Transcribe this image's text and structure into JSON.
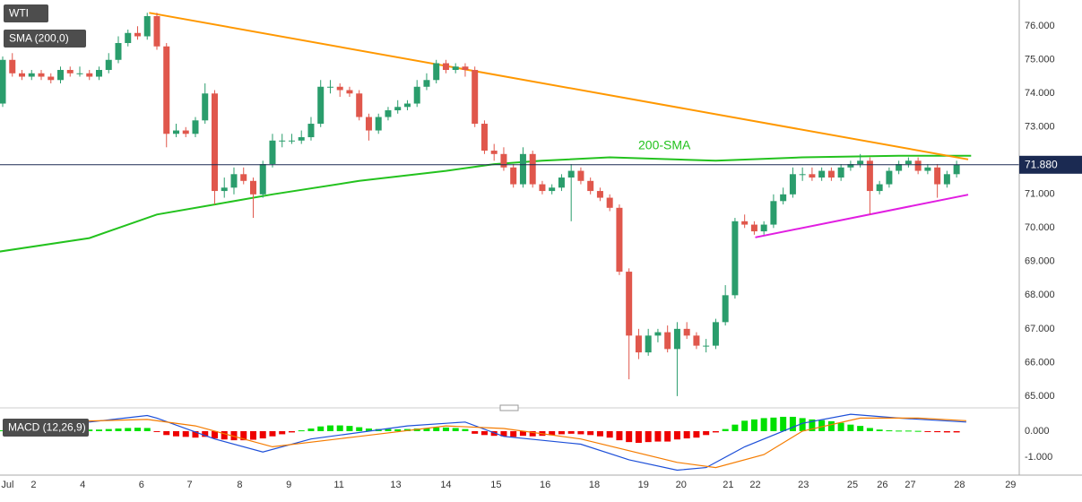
{
  "chart_data": [
    {
      "type": "candlestick",
      "xlim": [
        -0.28,
        105.5
      ],
      "ylim": [
        64.65,
        76.78
      ],
      "yticks": [
        {
          "value": 76,
          "label": "76.000"
        },
        {
          "value": 75,
          "label": "75.000"
        },
        {
          "value": 74,
          "label": "74.000"
        },
        {
          "value": 73,
          "label": "73.000"
        },
        {
          "value": 72,
          "label": "72.000"
        },
        {
          "value": 71,
          "label": "71.000"
        },
        {
          "value": 70,
          "label": "70.000"
        },
        {
          "value": 69,
          "label": "69.000"
        },
        {
          "value": 68,
          "label": "68.000"
        },
        {
          "value": 67,
          "label": "67.000"
        },
        {
          "value": 66,
          "label": "66.000"
        },
        {
          "value": 65,
          "label": "65.000"
        }
      ],
      "grid": true,
      "candles": {
        "name": "WTI",
        "up_color": "#2a9d6c",
        "down_color": "#e0574c",
        "open": [
          73.7,
          75.0,
          74.6,
          74.5,
          74.6,
          74.5,
          74.4,
          74.7,
          74.6,
          74.6,
          74.5,
          74.7,
          75.0,
          75.5,
          75.8,
          75.7,
          76.3,
          75.4,
          72.8,
          72.9,
          72.8,
          73.2,
          74.0,
          71.1,
          71.2,
          71.6,
          71.4,
          71.0,
          71.9,
          72.6,
          72.6,
          72.6,
          72.7,
          73.1,
          74.2,
          74.2,
          74.1,
          74.0,
          73.3,
          72.9,
          73.3,
          73.5,
          73.6,
          73.7,
          74.2,
          74.4,
          74.9,
          74.7,
          74.8,
          74.7,
          73.1,
          72.3,
          72.2,
          71.8,
          71.3,
          72.2,
          71.3,
          71.1,
          71.2,
          71.5,
          71.7,
          71.4,
          71.1,
          70.9,
          70.6,
          68.7,
          66.8,
          66.3,
          66.8,
          66.9,
          66.4,
          67.0,
          66.8,
          66.5,
          66.5,
          67.2,
          68.0,
          70.2,
          70.1,
          69.9,
          70.1,
          70.8,
          71.0,
          71.6,
          71.6,
          71.5,
          71.7,
          71.5,
          71.8,
          71.9,
          72.0,
          71.1,
          71.3,
          71.7,
          71.9,
          72.0,
          71.7,
          71.8,
          71.3,
          71.6
        ],
        "high": [
          75.1,
          75.2,
          74.7,
          74.7,
          74.7,
          74.6,
          74.8,
          74.8,
          74.8,
          74.7,
          74.8,
          75.2,
          75.7,
          75.9,
          76.0,
          76.4,
          76.4,
          75.5,
          73.1,
          73.0,
          73.3,
          74.3,
          74.1,
          71.5,
          71.8,
          71.8,
          71.5,
          72.0,
          72.8,
          72.8,
          72.8,
          72.9,
          73.3,
          74.4,
          74.4,
          74.3,
          74.2,
          74.1,
          73.4,
          73.4,
          73.6,
          73.8,
          73.8,
          74.4,
          74.6,
          75.0,
          75.0,
          74.9,
          74.9,
          74.8,
          73.2,
          72.5,
          72.4,
          71.9,
          72.4,
          72.3,
          71.4,
          71.3,
          71.6,
          71.9,
          71.8,
          71.5,
          71.2,
          71.0,
          70.7,
          68.8,
          67.0,
          67.0,
          67.0,
          67.1,
          67.2,
          67.2,
          66.9,
          66.7,
          67.3,
          68.3,
          70.3,
          70.4,
          70.2,
          70.2,
          71.0,
          71.2,
          71.8,
          71.8,
          71.8,
          71.8,
          71.8,
          71.9,
          72.0,
          72.2,
          72.1,
          71.4,
          71.8,
          72.0,
          72.1,
          72.1,
          71.9,
          71.9,
          71.7,
          72.0
        ],
        "low": [
          73.6,
          74.5,
          74.4,
          74.4,
          74.4,
          74.3,
          74.3,
          74.5,
          74.5,
          74.4,
          74.4,
          74.6,
          74.9,
          75.4,
          75.6,
          75.6,
          75.3,
          72.4,
          72.7,
          72.7,
          72.7,
          73.1,
          70.7,
          70.9,
          71.0,
          71.3,
          70.3,
          70.9,
          71.8,
          72.4,
          72.5,
          72.5,
          72.6,
          73.0,
          74.0,
          73.9,
          73.9,
          73.2,
          72.6,
          72.8,
          73.2,
          73.4,
          73.5,
          73.6,
          74.1,
          74.3,
          74.6,
          74.6,
          74.5,
          73.0,
          72.2,
          72.0,
          71.7,
          71.2,
          71.2,
          71.2,
          71.0,
          71.0,
          71.1,
          70.2,
          71.3,
          71.0,
          70.8,
          70.5,
          68.6,
          65.5,
          66.1,
          66.2,
          66.6,
          66.3,
          65.0,
          66.7,
          66.4,
          66.3,
          66.4,
          67.1,
          67.9,
          70.0,
          69.8,
          69.8,
          70.0,
          70.7,
          70.9,
          71.4,
          71.4,
          71.4,
          71.4,
          71.4,
          71.7,
          71.8,
          70.4,
          71.0,
          71.2,
          71.6,
          71.8,
          71.6,
          71.6,
          70.9,
          71.2,
          71.5
        ],
        "close": [
          75.0,
          74.6,
          74.5,
          74.6,
          74.5,
          74.4,
          74.7,
          74.6,
          74.6,
          74.5,
          74.7,
          75.0,
          75.5,
          75.8,
          75.7,
          76.3,
          75.4,
          72.8,
          72.9,
          72.8,
          73.2,
          74.0,
          71.1,
          71.2,
          71.6,
          71.4,
          71.0,
          71.9,
          72.6,
          72.6,
          72.6,
          72.7,
          73.1,
          74.2,
          74.2,
          74.1,
          74.0,
          73.3,
          72.9,
          73.3,
          73.5,
          73.6,
          73.7,
          74.2,
          74.4,
          74.9,
          74.7,
          74.8,
          74.7,
          73.1,
          72.3,
          72.2,
          71.8,
          71.3,
          72.2,
          71.3,
          71.1,
          71.2,
          71.5,
          71.7,
          71.4,
          71.1,
          70.9,
          70.6,
          68.7,
          66.8,
          66.3,
          66.8,
          66.9,
          66.4,
          67.0,
          66.8,
          66.5,
          66.5,
          67.2,
          68.0,
          70.2,
          70.1,
          69.9,
          70.1,
          70.8,
          71.0,
          71.6,
          71.6,
          71.5,
          71.7,
          71.5,
          71.8,
          71.9,
          72.0,
          71.1,
          71.3,
          71.7,
          71.9,
          72.0,
          71.7,
          71.8,
          71.3,
          71.6,
          71.88
        ]
      },
      "sma": {
        "name": "SMA (200,0)",
        "color": "#23c21e",
        "x": [
          -0.3,
          9,
          16,
          22,
          28,
          37,
          46,
          51,
          56,
          63,
          74,
          83,
          93,
          100.5
        ],
        "values": [
          69.3,
          69.7,
          70.4,
          70.7,
          71.0,
          71.4,
          71.7,
          71.9,
          72.0,
          72.1,
          72.0,
          72.1,
          72.15,
          72.15
        ]
      },
      "annotation": "200-SMA",
      "trendlines": [
        {
          "color": "#ff9800",
          "x": [
            15.2,
            100.2
          ],
          "values": [
            76.4,
            72.04
          ]
        },
        {
          "color": "#e11de1",
          "x": [
            78.1,
            100.2
          ],
          "values": [
            69.72,
            70.99
          ]
        }
      ],
      "last_price": {
        "value": 71.88,
        "label": "71.880",
        "color": "#1b2a52"
      }
    },
    {
      "type": "macd",
      "title": "MACD (12,26,9)",
      "xlim": [
        -0.28,
        105.5
      ],
      "ylim": [
        -1.62,
        0.79
      ],
      "yticks": [
        {
          "value": 0,
          "label": "0.000"
        },
        {
          "value": -1,
          "label": "-1.000"
        }
      ],
      "xticks": [
        {
          "value": 0.5,
          "label": "Jul"
        },
        {
          "value": 3.2,
          "label": "2"
        },
        {
          "value": 8.3,
          "label": "4"
        },
        {
          "value": 14.4,
          "label": "6"
        },
        {
          "value": 19.4,
          "label": "7"
        },
        {
          "value": 24.6,
          "label": "8"
        },
        {
          "value": 29.7,
          "label": "9"
        },
        {
          "value": 34.9,
          "label": "11"
        },
        {
          "value": 40.8,
          "label": "13"
        },
        {
          "value": 46,
          "label": "14"
        },
        {
          "value": 51.2,
          "label": "15"
        },
        {
          "value": 56.3,
          "label": "16"
        },
        {
          "value": 61.4,
          "label": "18"
        },
        {
          "value": 66.5,
          "label": "19"
        },
        {
          "value": 70.4,
          "label": "20"
        },
        {
          "value": 75.3,
          "label": "21"
        },
        {
          "value": 78.1,
          "label": "22"
        },
        {
          "value": 83.1,
          "label": "23"
        },
        {
          "value": 88.2,
          "label": "25"
        },
        {
          "value": 91.3,
          "label": "26"
        },
        {
          "value": 94.2,
          "label": "27"
        },
        {
          "value": 99.3,
          "label": "28"
        },
        {
          "value": 104.6,
          "label": "29"
        }
      ],
      "histogram": {
        "up_color": "#00e000",
        "down_color": "#ee0000",
        "values": [
          0.03,
          0.02,
          0.02,
          0.03,
          0.03,
          0.04,
          0.04,
          0.05,
          0.05,
          0.06,
          0.06,
          0.08,
          0.1,
          0.12,
          0.13,
          0.12,
          -0.02,
          -0.15,
          -0.2,
          -0.22,
          -0.25,
          -0.22,
          -0.28,
          -0.32,
          -0.35,
          -0.35,
          -0.33,
          -0.28,
          -0.2,
          -0.12,
          -0.05,
          0.03,
          0.1,
          0.18,
          0.22,
          0.22,
          0.2,
          0.15,
          0.1,
          0.08,
          0.08,
          0.07,
          0.08,
          0.1,
          0.12,
          0.14,
          0.14,
          0.12,
          0.08,
          -0.1,
          -0.15,
          -0.18,
          -0.2,
          -0.22,
          -0.18,
          -0.2,
          -0.18,
          -0.16,
          -0.12,
          -0.1,
          -0.12,
          -0.15,
          -0.2,
          -0.25,
          -0.35,
          -0.42,
          -0.45,
          -0.42,
          -0.4,
          -0.4,
          -0.32,
          -0.28,
          -0.25,
          -0.15,
          -0.05,
          0.08,
          0.25,
          0.4,
          0.45,
          0.5,
          0.52,
          0.55,
          0.55,
          0.5,
          0.45,
          0.42,
          0.38,
          0.32,
          0.25,
          0.2,
          0.12,
          0.06,
          0.03,
          0.02,
          0.02,
          0.01,
          -0.02,
          -0.04,
          -0.05,
          -0.05
        ]
      },
      "lines": [
        {
          "color": "#1d4fd8",
          "x": [
            0,
            9,
            15,
            16,
            22,
            27,
            32,
            42,
            48,
            52,
            60,
            65,
            70,
            73,
            77,
            83,
            88,
            93,
            100
          ],
          "values": [
            0.4,
            0.35,
            0.6,
            0.5,
            -0.3,
            -0.8,
            -0.3,
            0.2,
            0.35,
            -0.2,
            -0.5,
            -1.1,
            -1.5,
            -1.4,
            -0.6,
            0.3,
            0.65,
            0.5,
            0.35
          ]
        },
        {
          "color": "#f57c00",
          "x": [
            0,
            15,
            20,
            28,
            37,
            46,
            52,
            60,
            70,
            74,
            79,
            83,
            89,
            95,
            100
          ],
          "values": [
            0.3,
            0.45,
            0.2,
            -0.6,
            -0.2,
            0.2,
            0.1,
            -0.3,
            -1.2,
            -1.4,
            -0.9,
            0.0,
            0.5,
            0.5,
            0.4
          ]
        }
      ]
    }
  ]
}
